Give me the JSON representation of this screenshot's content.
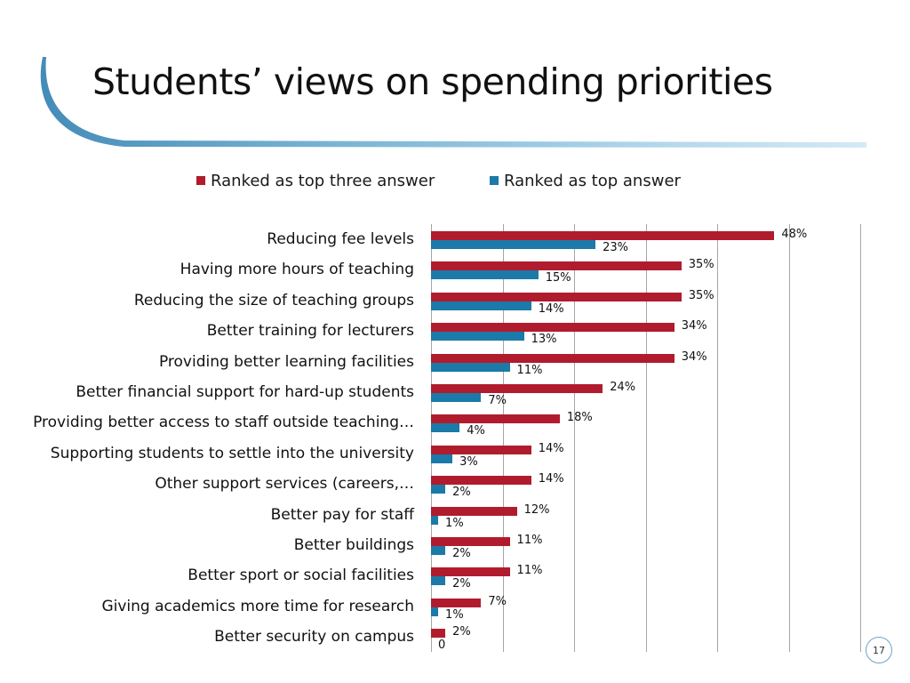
{
  "slide": {
    "title": "Students’ views on spending priorities",
    "page_number": "17",
    "colors": {
      "top_three": "#b01c2e",
      "top": "#1b7aa8",
      "swoosh": "#4a9cc9"
    }
  },
  "chart_data": {
    "type": "bar",
    "orientation": "horizontal",
    "title": "",
    "xlabel": "",
    "ylabel": "",
    "xlim": [
      0,
      60
    ],
    "grid": true,
    "legend_position": "top",
    "categories": [
      "Reducing fee levels",
      "Having more hours of teaching",
      "Reducing the size of teaching groups",
      "Better training for lecturers",
      "Providing better learning facilities",
      "Better financial support for hard-up students",
      "Providing better access to staff outside teaching…",
      "Supporting students to settle into the university",
      "Other support services (careers,…",
      "Better pay for staff",
      "Better buildings",
      "Better sport or social facilities",
      "Giving academics more time for research",
      "Better security on campus"
    ],
    "series": [
      {
        "name": "Ranked as top three answer",
        "color": "#b01c2e",
        "values": [
          48,
          35,
          35,
          34,
          34,
          24,
          18,
          14,
          14,
          12,
          11,
          11,
          7,
          2
        ],
        "labels": [
          "48%",
          "35%",
          "35%",
          "34%",
          "34%",
          "24%",
          "18%",
          "14%",
          "14%",
          "12%",
          "11%",
          "11%",
          "7%",
          "2%"
        ]
      },
      {
        "name": "Ranked as top answer",
        "color": "#1b7aa8",
        "values": [
          23,
          15,
          14,
          13,
          11,
          7,
          4,
          3,
          2,
          1,
          2,
          2,
          1,
          0
        ],
        "labels": [
          "23%",
          "15%",
          "14%",
          "13%",
          "11%",
          "7%",
          "4%",
          "3%",
          "2%",
          "1%",
          "2%",
          "2%",
          "1%",
          "0"
        ]
      }
    ]
  }
}
